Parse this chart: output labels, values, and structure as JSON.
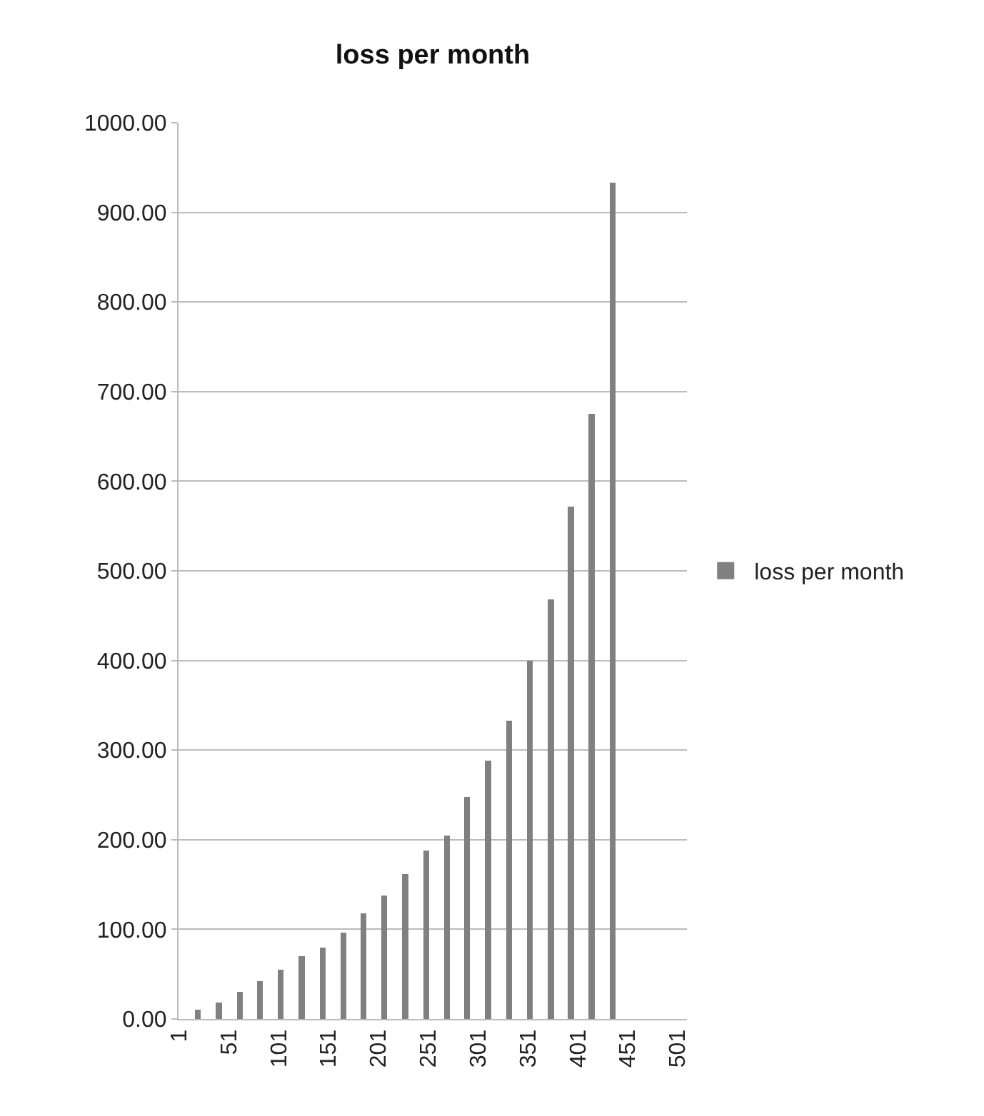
{
  "chart_data": {
    "type": "bar",
    "title": "loss per month",
    "x": [
      20,
      41,
      62,
      82,
      103,
      124,
      145,
      166,
      186,
      207,
      228,
      249,
      270,
      290,
      311,
      332,
      353,
      374,
      394,
      415,
      436
    ],
    "series": [
      {
        "name": "loss per month",
        "color": "#808080",
        "values": [
          10,
          18,
          30,
          42,
          55,
          70,
          80,
          96,
          118,
          138,
          162,
          188,
          205,
          248,
          288,
          333,
          400,
          468,
          572,
          675,
          933
        ]
      }
    ],
    "xlim": [
      0.5,
      510.5
    ],
    "xticks": [
      1,
      51,
      101,
      151,
      201,
      251,
      301,
      351,
      401,
      451,
      501
    ],
    "ylim": [
      0,
      1000
    ],
    "yticks": [
      {
        "value": 0,
        "label": "0.00"
      },
      {
        "value": 100,
        "label": "100.00"
      },
      {
        "value": 200,
        "label": "200.00"
      },
      {
        "value": 300,
        "label": "300.00"
      },
      {
        "value": 400,
        "label": "400.00"
      },
      {
        "value": 500,
        "label": "500.00"
      },
      {
        "value": 600,
        "label": "600.00"
      },
      {
        "value": 700,
        "label": "700.00"
      },
      {
        "value": 800,
        "label": "800.00"
      },
      {
        "value": 900,
        "label": "900.00"
      },
      {
        "value": 1000,
        "label": "1000.00"
      }
    ],
    "grid": "y",
    "legend": "right"
  }
}
